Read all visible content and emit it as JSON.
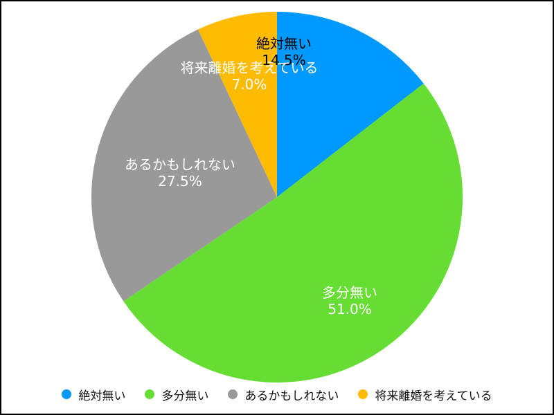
{
  "chart_data": {
    "type": "pie",
    "categories": [
      "絶対無い",
      "多分無い",
      "あるかもしれない",
      "将来離婚を考えている"
    ],
    "values": [
      14.5,
      51.0,
      27.5,
      7.0
    ],
    "value_labels": [
      "14.5%",
      "51.0%",
      "27.5%",
      "7.0%"
    ],
    "colors": [
      "#0099ff",
      "#66dd33",
      "#999999",
      "#ffbb00"
    ],
    "label_colors": [
      "#000000",
      "#ffffff",
      "#ffffff",
      "#ffffff"
    ],
    "start": "12 o'clock, clockwise",
    "legend_position": "bottom"
  }
}
